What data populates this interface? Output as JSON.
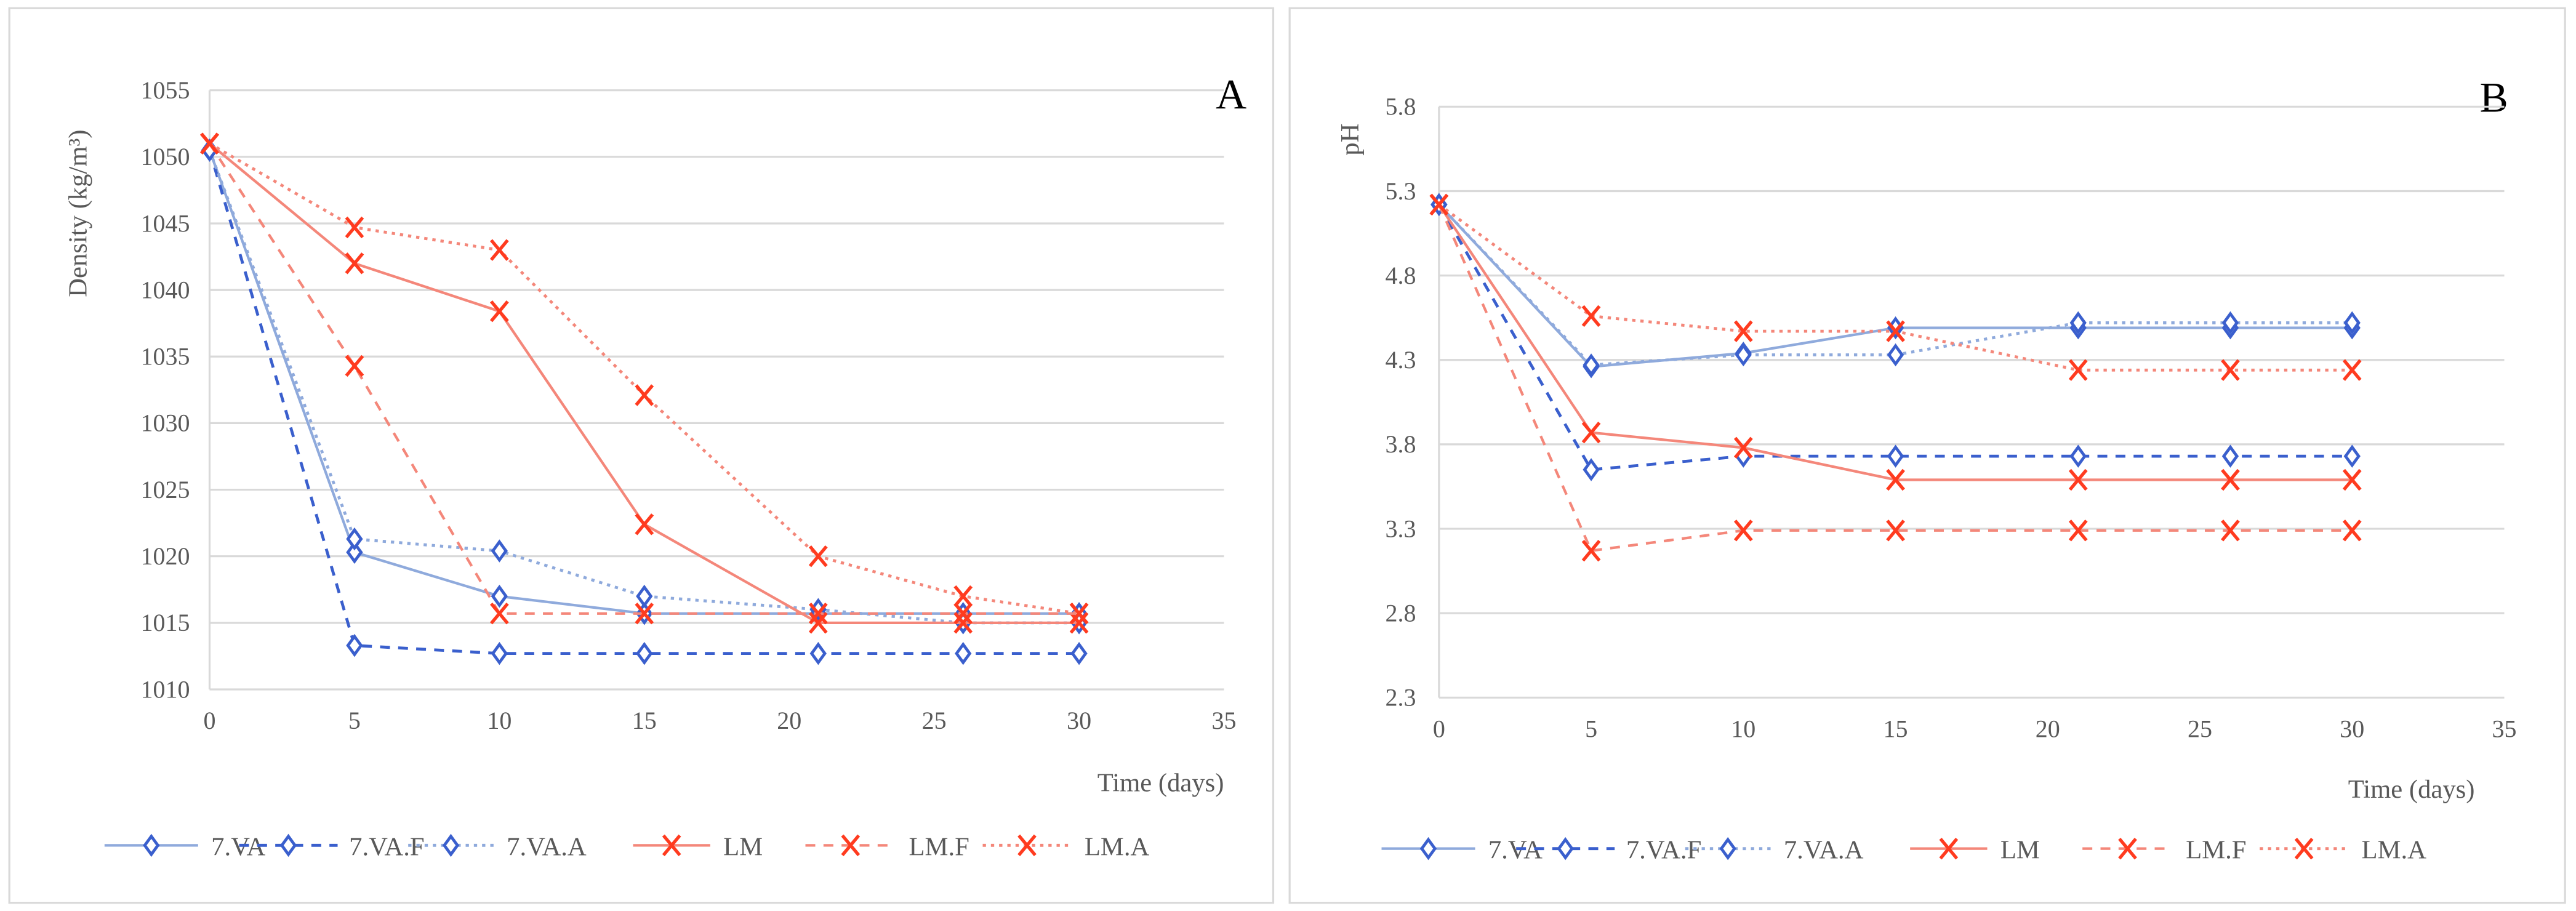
{
  "colors": {
    "blue_light": "#8faadc",
    "blue_dark": "#3a5fcd",
    "blue_marker": "#3a5fcd",
    "red_line": "#f4877a",
    "red_marker": "#ff3b1f",
    "grid": "#d9d9d9"
  },
  "chart_data": [
    {
      "type": "line",
      "panel_label": "A",
      "xlabel": "Time (days)",
      "ylabel": "Density (kg/m³)",
      "xlim": [
        0,
        35
      ],
      "ylim": [
        1010,
        1055
      ],
      "x_ticks": [
        "0",
        "5",
        "10",
        "15",
        "20",
        "25",
        "30",
        "35"
      ],
      "y_ticks": [
        "1010",
        "1015",
        "1020",
        "1025",
        "1030",
        "1035",
        "1040",
        "1045",
        "1050",
        "1055"
      ],
      "grid": true,
      "legend_position": "bottom",
      "x": [
        0,
        5,
        10,
        15,
        21,
        26,
        30
      ],
      "series": [
        {
          "name": "7.VA",
          "values": [
            1050.5,
            1020.3,
            1017.0,
            1015.7,
            1015.7,
            1015.7,
            1015.7
          ]
        },
        {
          "name": "7.VA.F",
          "values": [
            1050.5,
            1013.3,
            1012.7,
            1012.7,
            1012.7,
            1012.7,
            1012.7
          ]
        },
        {
          "name": "7.VA.A",
          "values": [
            1050.5,
            1021.3,
            1020.4,
            1017.0,
            1016.0,
            1015.0,
            1015.0
          ]
        },
        {
          "name": "LM",
          "values": [
            1051.0,
            1042.0,
            1038.4,
            1022.4,
            1015.0,
            1015.0,
            1015.0
          ]
        },
        {
          "name": "LM.F",
          "values": [
            1051.0,
            1034.3,
            1015.7,
            1015.7,
            1015.7,
            1015.7,
            1015.7
          ]
        },
        {
          "name": "LM.A",
          "values": [
            1051.0,
            1044.7,
            1043.0,
            1032.1,
            1020.0,
            1017.0,
            1015.7
          ]
        }
      ]
    },
    {
      "type": "line",
      "panel_label": "B",
      "xlabel": "Time (days)",
      "ylabel": "pH",
      "xlim": [
        0,
        35
      ],
      "ylim": [
        2.3,
        5.8
      ],
      "x_ticks": [
        "0",
        "5",
        "10",
        "15",
        "20",
        "25",
        "30",
        "35"
      ],
      "y_ticks": [
        "2.3",
        "2.8",
        "3.3",
        "3.8",
        "4.3",
        "4.8",
        "5.3",
        "5.8"
      ],
      "grid": true,
      "legend_position": "bottom",
      "x": [
        0,
        5,
        10,
        15,
        21,
        26,
        30
      ],
      "series": [
        {
          "name": "7.VA",
          "values": [
            5.22,
            4.26,
            4.34,
            4.49,
            4.49,
            4.49,
            4.49
          ]
        },
        {
          "name": "7.VA.F",
          "values": [
            5.22,
            3.65,
            3.73,
            3.73,
            3.73,
            3.73,
            3.73
          ]
        },
        {
          "name": "7.VA.A",
          "values": [
            5.22,
            4.27,
            4.33,
            4.33,
            4.52,
            4.52,
            4.52
          ]
        },
        {
          "name": "LM",
          "values": [
            5.22,
            3.87,
            3.78,
            3.59,
            3.59,
            3.59,
            3.59
          ]
        },
        {
          "name": "LM.F",
          "values": [
            5.22,
            3.17,
            3.29,
            3.29,
            3.29,
            3.29,
            3.29
          ]
        },
        {
          "name": "LM.A",
          "values": [
            5.22,
            4.56,
            4.47,
            4.47,
            4.24,
            4.24,
            4.24
          ]
        }
      ]
    }
  ]
}
